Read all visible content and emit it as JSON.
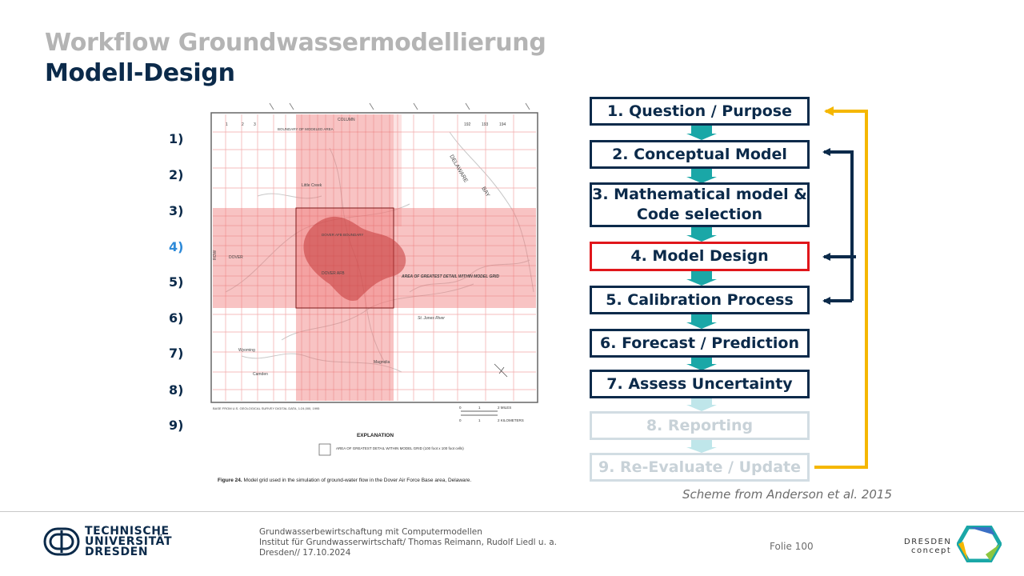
{
  "title": {
    "line1": "Workflow Groundwassermodellierung",
    "line2": "Modell-Design"
  },
  "numbers": [
    "1)",
    "2)",
    "3)",
    "4)",
    "5)",
    "6)",
    "7)",
    "8)",
    "9)"
  ],
  "active_number_color": "#2e8ad8",
  "figure": {
    "column_label": "COLUMN",
    "row_label": "ROW",
    "boundary_label": "BOUNDARY OF MODELED AREA",
    "col_numbers": [
      "1",
      "2",
      "3",
      "192",
      "193",
      "194"
    ],
    "places": [
      "Little Creek",
      "DOVER",
      "DOVER AFB BOUNDARY",
      "DOVER AFB",
      "Wyoming",
      "Camden",
      "Magnolia",
      "St. Jones River"
    ],
    "water_labels": [
      "DELAWARE",
      "BAY"
    ],
    "area_label": "AREA OF GREATEST DETAIL WITHIN MODEL GRID",
    "base_note": "BASE FROM U.S. GEOLOGICAL SURVEY DIGITAL DATA, 1:24,000, 1995",
    "scale_miles": "2 MILES",
    "scale_km": "2 KILOMETERS",
    "scale_0": "0",
    "scale_1": "1",
    "explanation_title": "EXPLANATION",
    "explanation_text": "AREA OF GREATEST DETAIL WITHIN MODEL GRID (100 foot x 100 foot cells)",
    "figure_caption_bold": "Figure 24.",
    "figure_caption": "Model grid used in the simulation of ground-water flow in the Dover Air Force Base area, Delaware."
  },
  "steps": [
    {
      "label": "1. Question / Purpose"
    },
    {
      "label": "2. Conceptual Model"
    },
    {
      "label": "3. Mathematical model & Code selection"
    },
    {
      "label": "4. Model Design"
    },
    {
      "label": "5. Calibration Process"
    },
    {
      "label": "6. Forecast / Prediction"
    },
    {
      "label": "7. Assess Uncertainty"
    },
    {
      "label": "8. Reporting"
    },
    {
      "label": "9. Re-Evaluate / Update"
    }
  ],
  "colors": {
    "navy": "#0b2a4a",
    "teal": "#1aa7a7",
    "red_border": "#e0161b",
    "gold": "#f5b700",
    "faded": "#d2dde3"
  },
  "caption": "Scheme from Anderson et al. 2015",
  "footer": {
    "line1": "Grundwasserbewirtschaftung mit Computermodellen",
    "line2": "Institut für Grundwasserwirtschaft/ Thomas Reimann, Rudolf Liedl u. a.",
    "line3": "Dresden// 17.10.2024",
    "folio": "Folie 100",
    "tud_logo": [
      "TECHNISCHE",
      "UNIVERSITÄT",
      "DRESDEN"
    ],
    "dresden_concept": [
      "DRESDEN",
      "concept"
    ]
  }
}
